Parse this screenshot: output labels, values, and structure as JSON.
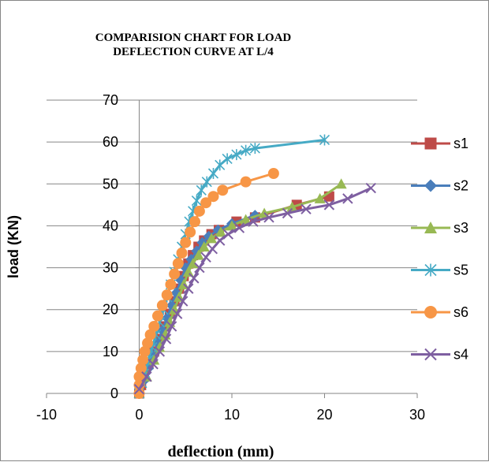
{
  "chart_data": {
    "type": "scatter",
    "title_lines": [
      "COMPARISION CHART FOR LOAD",
      "DEFLECTION CURVE AT L/4"
    ],
    "xlabel": "deflection (mm)",
    "ylabel": "load (KN)",
    "xlim": [
      -10,
      30
    ],
    "ylim": [
      0,
      70
    ],
    "x_ticks": [
      -10,
      0,
      10,
      20,
      30
    ],
    "y_ticks": [
      0,
      10,
      20,
      30,
      40,
      50,
      60,
      70
    ],
    "grid": "horizontal major gridlines",
    "legend_position": "right",
    "series": [
      {
        "name": "s1",
        "color": "#BE4B48",
        "marker": "square",
        "x": [
          0,
          0.2,
          0.5,
          1.0,
          1.6,
          2.2,
          2.8,
          3.3,
          3.8,
          4.3,
          4.8,
          5.3,
          5.8,
          6.4,
          7.0,
          7.8,
          8.6,
          10.5,
          12.5,
          17.0,
          20.5
        ],
        "y": [
          0,
          2,
          4,
          7,
          10,
          13,
          16,
          19,
          22,
          25,
          28,
          31,
          33,
          35,
          36.5,
          38,
          39,
          41,
          42,
          45,
          47
        ]
      },
      {
        "name": "s2",
        "color": "#4A7EBB",
        "marker": "diamond",
        "x": [
          0,
          0.5,
          1.0,
          1.5,
          2.0,
          2.5,
          3.0,
          3.5,
          4.0,
          4.5,
          5.0,
          5.6,
          6.2,
          6.8,
          7.5,
          8.5,
          10.0,
          12.5
        ],
        "y": [
          0,
          3,
          6,
          9,
          12,
          15,
          18,
          21,
          24,
          27,
          30,
          32,
          34,
          36,
          37.5,
          39,
          40.5,
          42.5
        ]
      },
      {
        "name": "s3",
        "color": "#98B954",
        "marker": "triangle",
        "x": [
          0,
          0.8,
          1.6,
          2.2,
          2.8,
          3.3,
          3.8,
          4.3,
          4.8,
          5.3,
          5.8,
          6.4,
          7.0,
          7.8,
          8.8,
          10.0,
          11.5,
          13.5,
          16.5,
          19.5,
          21.8
        ],
        "y": [
          0,
          4,
          8,
          11,
          14,
          17,
          20,
          23,
          26,
          29,
          31,
          33,
          35,
          37,
          38.5,
          40,
          41.5,
          43,
          44.5,
          46.5,
          50
        ]
      },
      {
        "name": "s5",
        "color": "#46AAC5",
        "marker": "star",
        "x": [
          0,
          0.3,
          0.6,
          1.0,
          1.4,
          1.8,
          2.2,
          2.6,
          3.0,
          3.4,
          3.8,
          4.2,
          4.6,
          5.0,
          5.4,
          5.8,
          6.2,
          6.7,
          7.3,
          8.0,
          8.7,
          9.5,
          10.5,
          11.5,
          12.5,
          20.0
        ],
        "y": [
          0,
          2.5,
          5,
          8,
          11,
          14,
          17,
          20,
          23,
          26,
          29,
          32,
          35,
          38,
          41,
          43.5,
          46,
          48.5,
          50.5,
          52.5,
          54.5,
          56,
          57,
          58,
          58.5,
          60.5
        ]
      },
      {
        "name": "s6",
        "color": "#F79646",
        "marker": "circle",
        "x": [
          0,
          0,
          0,
          0.2,
          0.4,
          0.6,
          0.9,
          1.2,
          1.6,
          2.0,
          2.5,
          3.0,
          3.4,
          3.8,
          4.2,
          4.6,
          5.0,
          5.5,
          6.0,
          6.5,
          7.2,
          8.0,
          9.0,
          11.5,
          14.5
        ],
        "y": [
          0,
          2,
          4,
          6,
          8,
          10,
          12,
          14,
          16,
          18.5,
          21,
          23.5,
          26,
          28.5,
          31,
          33.5,
          36,
          38.5,
          41,
          43.5,
          45.5,
          47,
          48.5,
          50.5,
          52.5
        ]
      },
      {
        "name": "s4",
        "color": "#7E5FA1",
        "marker": "x",
        "x": [
          0,
          0.8,
          1.5,
          2.2,
          2.9,
          3.5,
          4.1,
          4.7,
          5.3,
          5.9,
          6.5,
          7.2,
          7.9,
          8.7,
          9.6,
          10.8,
          12.3,
          14.0,
          16.0,
          18.0,
          20.5,
          22.5,
          25.0
        ],
        "y": [
          1,
          4,
          7,
          10,
          13,
          16,
          19,
          22,
          25,
          27.5,
          30,
          32.5,
          34.5,
          36.5,
          38,
          39.5,
          41,
          42,
          43,
          44,
          45,
          46.5,
          49
        ]
      }
    ]
  }
}
